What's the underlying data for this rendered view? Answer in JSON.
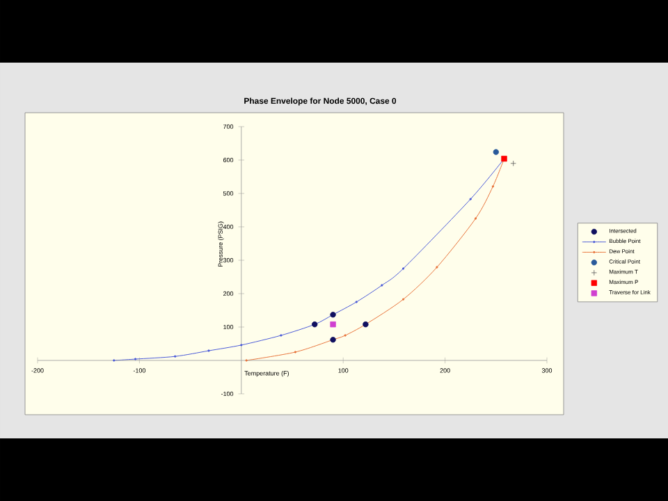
{
  "chart_data": {
    "type": "line",
    "title": "Phase Envelope for Node 5000, Case 0",
    "xlabel": "Temperature (F)",
    "ylabel": "Pressure (PSIG)",
    "xlim": [
      -200,
      300
    ],
    "ylim": [
      -100,
      700
    ],
    "xticks": [
      -200,
      -100,
      100,
      200,
      300
    ],
    "yticks": [
      -100,
      100,
      200,
      300,
      400,
      500,
      600,
      700
    ],
    "legend": "right",
    "grid": false,
    "series": [
      {
        "name": "Intersected",
        "type": "scatter",
        "marker": "circle",
        "color": "#101060",
        "x": [
          72,
          90,
          90,
          122
        ],
        "values": [
          108,
          137,
          62,
          108
        ]
      },
      {
        "name": "Bubble Point",
        "type": "line",
        "marker": "circle",
        "color": "#4a5ad8",
        "x": [
          -125,
          -104,
          -65,
          -32,
          0,
          39,
          72,
          90,
          113,
          138,
          159,
          225,
          258
        ],
        "values": [
          0,
          4,
          12,
          29,
          46,
          75,
          108,
          137,
          175,
          225,
          275,
          483,
          604
        ]
      },
      {
        "name": "Dew Point",
        "type": "line",
        "marker": "circle",
        "color": "#e8743c",
        "x": [
          5,
          53,
          90,
          102,
          122,
          159,
          192,
          230,
          247,
          258
        ],
        "values": [
          0,
          25,
          62,
          75,
          108,
          183,
          279,
          425,
          521,
          604
        ]
      },
      {
        "name": "Critical Point",
        "type": "scatter",
        "marker": "circle",
        "color": "#2a5a9a",
        "x": [
          250
        ],
        "values": [
          624
        ]
      },
      {
        "name": "Maximum T",
        "type": "scatter",
        "marker": "cross",
        "color": "#5a5a5a",
        "x": [
          267
        ],
        "values": [
          590
        ]
      },
      {
        "name": "Maximum P",
        "type": "scatter",
        "marker": "square",
        "color": "#ff0000",
        "x": [
          258
        ],
        "values": [
          604
        ]
      },
      {
        "name": "Traverse for Link",
        "type": "scatter",
        "marker": "square",
        "color": "#d040d0",
        "x": [
          90
        ],
        "values": [
          108
        ]
      }
    ]
  }
}
